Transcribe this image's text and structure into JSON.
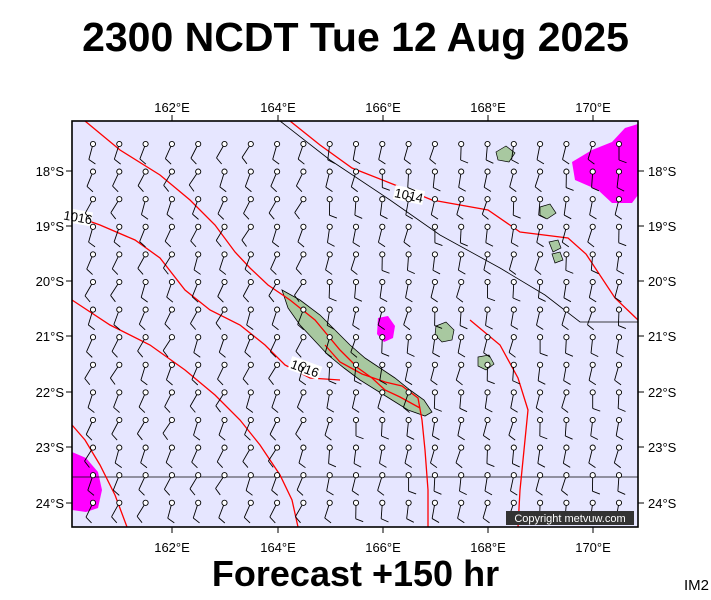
{
  "title": "2300 NCDT Tue 12 Aug 2025",
  "footer": "Forecast +150 hr",
  "image_code": "IM2",
  "copyright": "Copyright metvuw.com",
  "map": {
    "lon_labels": [
      "162°E",
      "164°E",
      "166°E",
      "168°E",
      "170°E"
    ],
    "lat_labels": [
      "18°S",
      "19°S",
      "20°S",
      "21°S",
      "22°S",
      "23°S",
      "24°S"
    ],
    "isobar_labels": [
      "1014",
      "1016",
      "1016"
    ],
    "colors": {
      "background": "#e6e6ff",
      "isobar": "#ff0000",
      "rain": "#ff00ff",
      "land": "#a8c8a0",
      "border": "#000000"
    }
  }
}
